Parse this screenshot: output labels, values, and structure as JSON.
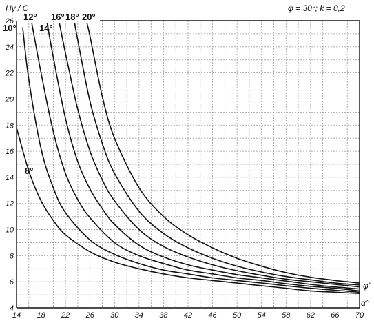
{
  "chart_data": {
    "type": "line",
    "title": "",
    "ylabel": "Hγ / C",
    "xlabel": "α°",
    "right_label": "φ'",
    "note": "φ = 30°;  k = 0,2",
    "xlim": [
      14,
      70
    ],
    "ylim": [
      4,
      26
    ],
    "x_ticks": [
      14,
      18,
      22,
      26,
      30,
      34,
      38,
      42,
      46,
      50,
      54,
      58,
      62,
      66,
      70
    ],
    "y_ticks": [
      4,
      6,
      8,
      10,
      12,
      14,
      16,
      18,
      20,
      22,
      24,
      26
    ],
    "grid": true,
    "series": [
      {
        "name": "8°",
        "x": [
          14,
          16,
          18,
          20,
          22,
          26,
          30,
          34,
          38,
          42,
          46,
          50,
          54,
          58,
          62,
          66,
          70
        ],
        "y": [
          17.8,
          14.5,
          12.2,
          10.7,
          9.6,
          8.3,
          7.5,
          7.0,
          6.6,
          6.3,
          6.1,
          5.9,
          5.7,
          5.5,
          5.3,
          5.2,
          5.1
        ]
      },
      {
        "name": "10°",
        "x": [
          15,
          16,
          18,
          20,
          22,
          26,
          30,
          34,
          38,
          42,
          46,
          50,
          54,
          58,
          62,
          66,
          70
        ],
        "y": [
          25.5,
          21.5,
          16.2,
          13.2,
          11.3,
          9.2,
          8.1,
          7.4,
          6.9,
          6.6,
          6.3,
          6.1,
          5.9,
          5.7,
          5.5,
          5.35,
          5.2
        ]
      },
      {
        "name": "12°",
        "x": [
          16.5,
          18,
          20,
          22,
          24,
          26,
          30,
          34,
          38,
          42,
          46,
          50,
          54,
          58,
          62,
          66,
          70
        ],
        "y": [
          25.8,
          22.0,
          17.5,
          14.3,
          12.3,
          10.9,
          9.0,
          8.0,
          7.4,
          6.9,
          6.6,
          6.3,
          6.1,
          5.85,
          5.65,
          5.5,
          5.3
        ]
      },
      {
        "name": "14°",
        "x": [
          19,
          20,
          22,
          24,
          26,
          28,
          30,
          34,
          38,
          42,
          46,
          50,
          54,
          58,
          62,
          66,
          70
        ],
        "y": [
          25.8,
          23.2,
          18.5,
          15.2,
          13.1,
          11.6,
          10.4,
          8.8,
          7.9,
          7.3,
          6.9,
          6.55,
          6.3,
          6.05,
          5.8,
          5.6,
          5.45
        ]
      },
      {
        "name": "16°",
        "x": [
          21,
          22,
          24,
          26,
          28,
          30,
          34,
          38,
          42,
          46,
          50,
          54,
          58,
          62,
          66,
          70
        ],
        "y": [
          25.8,
          23.5,
          19.2,
          16.0,
          13.8,
          12.2,
          10.0,
          8.7,
          7.9,
          7.3,
          6.85,
          6.5,
          6.2,
          6.0,
          5.8,
          5.6
        ]
      },
      {
        "name": "18°",
        "x": [
          23.5,
          24,
          26,
          28,
          30,
          34,
          38,
          42,
          46,
          50,
          54,
          58,
          62,
          66,
          70
        ],
        "y": [
          25.8,
          24.5,
          19.8,
          16.6,
          14.3,
          11.4,
          9.7,
          8.6,
          7.8,
          7.2,
          6.75,
          6.4,
          6.15,
          5.9,
          5.75
        ]
      },
      {
        "name": "20°",
        "x": [
          25.5,
          26,
          28,
          30,
          34,
          38,
          42,
          46,
          50,
          54,
          58,
          62,
          66,
          70
        ],
        "y": [
          25.8,
          24.8,
          20.2,
          17.0,
          13.2,
          11.0,
          9.6,
          8.6,
          7.8,
          7.2,
          6.7,
          6.35,
          6.1,
          5.9
        ]
      }
    ]
  }
}
